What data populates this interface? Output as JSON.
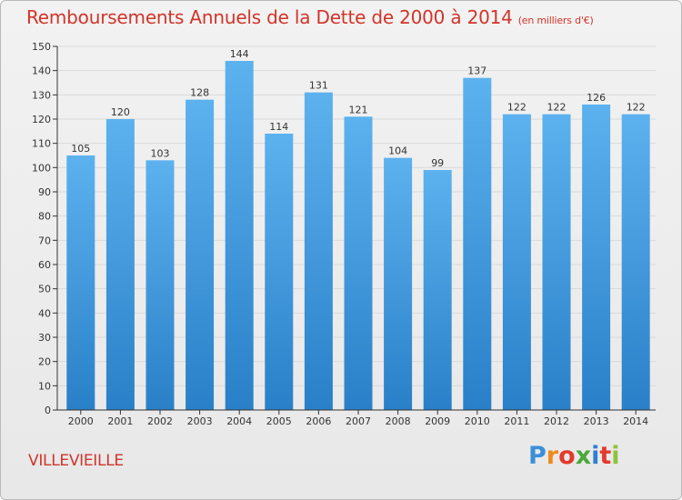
{
  "title": "Remboursements Annuels de la Dette de 2000 à 2014",
  "subtitle": "(en milliers d'€)",
  "town": "VILLEVIEILLE",
  "brand": "Proxiti",
  "colors": {
    "title": "#d2342a",
    "bar_top": "#5cb2ee",
    "bar_bottom": "#2a80c8",
    "grid": "#d9d9d9",
    "axis": "#333333"
  },
  "chart_data": {
    "type": "bar",
    "title": "Remboursements Annuels de la Dette de 2000 à 2014",
    "xlabel": "",
    "ylabel": "",
    "categories": [
      "2000",
      "2001",
      "2002",
      "2003",
      "2004",
      "2005",
      "2006",
      "2007",
      "2008",
      "2009",
      "2010",
      "2011",
      "2012",
      "2013",
      "2014"
    ],
    "values": [
      105,
      120,
      103,
      128,
      144,
      114,
      131,
      121,
      104,
      99,
      137,
      122,
      122,
      126,
      122
    ],
    "ylim": [
      0,
      150
    ],
    "yticks": [
      0,
      10,
      20,
      30,
      40,
      50,
      60,
      70,
      80,
      90,
      100,
      110,
      120,
      130,
      140,
      150
    ],
    "grid": true
  }
}
